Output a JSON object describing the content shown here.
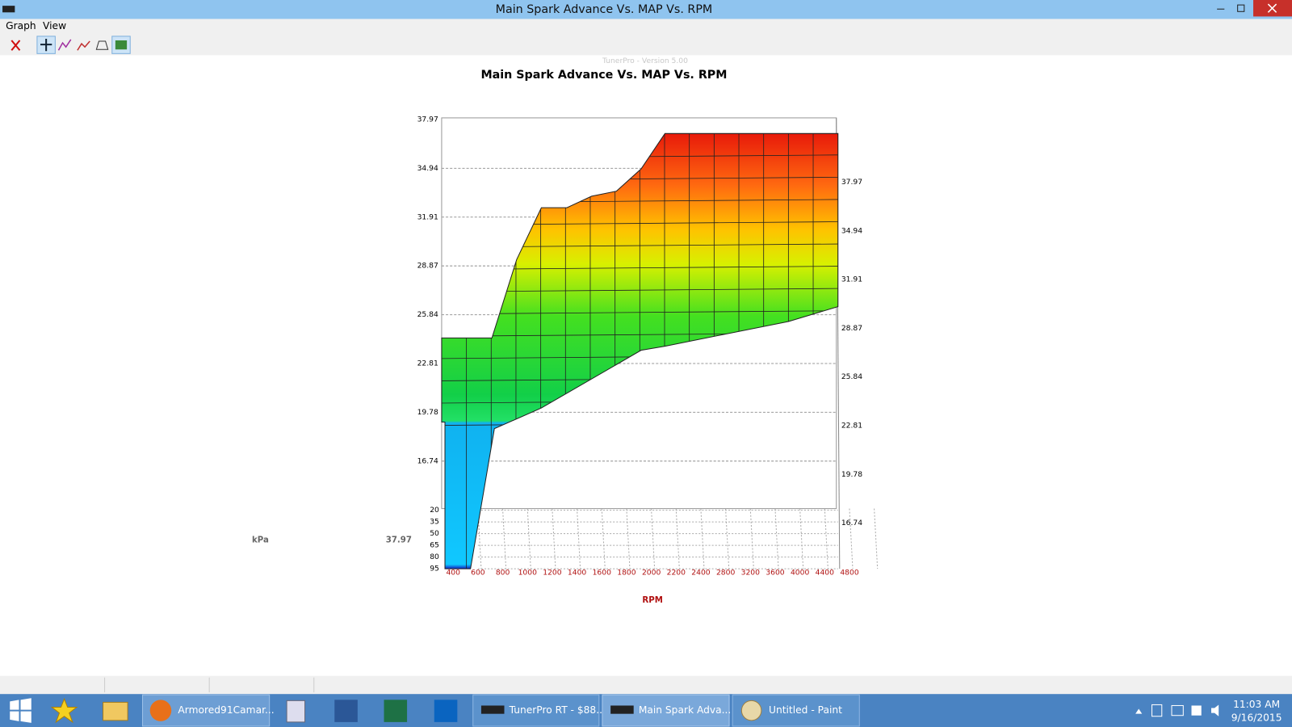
{
  "window": {
    "title": "Main Spark Advance Vs. MAP Vs. RPM",
    "menu": [
      "Graph",
      "View"
    ]
  },
  "chart": {
    "watermark": "TunerPro - Version 5.00",
    "title": "Main Spark Advance Vs. MAP Vs. RPM",
    "left_axis_ticks": [
      "37.97",
      "34.94",
      "31.91",
      "28.87",
      "25.84",
      "22.81",
      "19.78",
      "16.74"
    ],
    "right_axis_ticks": [
      "37.97",
      "34.94",
      "31.91",
      "28.87",
      "25.84",
      "22.81",
      "19.78",
      "16.74"
    ],
    "map_ticks": [
      "20",
      "35",
      "50",
      "65",
      "80",
      "95"
    ],
    "rpm_ticks": [
      "400",
      "600",
      "800",
      "1000",
      "1200",
      "1400",
      "1600",
      "1800",
      "2000",
      "2200",
      "2400",
      "2800",
      "3200",
      "3600",
      "4000",
      "4400",
      "4800"
    ],
    "rpm_label": "RPM",
    "kpa_label": "kPa",
    "kpa_value": "37.97"
  },
  "taskbar": {
    "items": [
      "Armored91Camar...",
      "TunerPro RT - $88...",
      "Main Spark Adva...",
      "Untitled - Paint"
    ],
    "time": "11:03 AM",
    "date": "9/16/2015"
  }
}
